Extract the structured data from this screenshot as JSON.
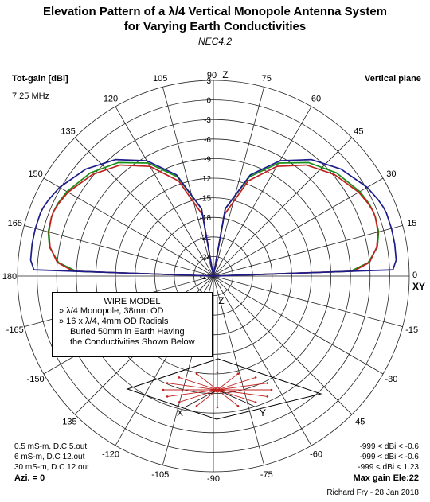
{
  "title_line1": "Elevation Pattern of a λ/4 Vertical Monopole Antenna System",
  "title_line2": "for Varying Earth Conductivities",
  "subtitle": "NEC4.2",
  "top_left_label": "Tot-gain [dBi]",
  "frequency": "7.25 MHz",
  "top_right_label": "Vertical plane",
  "azimuth": "Azi. = 0",
  "max_gain": "Max gain Ele:22",
  "credit": "Richard Fry - 28 Jan 2018",
  "axis_labels": {
    "z_top": "Z",
    "xy": "XY",
    "z_model": "Z",
    "x_model": "X",
    "y_model": "Y"
  },
  "wire_model": {
    "title": "WIRE MODEL",
    "lines": [
      "» λ/4 Monopole, 38mm OD",
      "» 16 x λ/4, 4mm OD Radials",
      "Buried 50mm in Earth Having",
      "the Conductivities Shown Below"
    ]
  },
  "legend_left": [
    {
      "text": "0.5 mS-m, D.C 5.out",
      "color": "#1a8f1a"
    },
    {
      "text": "6 mS-m, D.C 12.out",
      "color": "#c0201e"
    },
    {
      "text": "30 mS-m, D.C 12.out",
      "color": "#1c1c8c"
    }
  ],
  "legend_right": [
    {
      "text": "-999 < dBi < -0.6",
      "color": "#1a8f1a"
    },
    {
      "text": "-999 < dBi < -0.6",
      "color": "#c0201e"
    },
    {
      "text": "-999 < dBi < 1.23",
      "color": "#1c1c8c"
    }
  ],
  "chart_data": {
    "type": "polar",
    "title": "Elevation Pattern of a λ/4 Vertical Monopole Antenna System for Varying Earth Conductivities",
    "radial_ticks": [
      "3",
      "0",
      "-3",
      "-6",
      "-9",
      "-12",
      "-15",
      "-18",
      "-21",
      "-24",
      "-27"
    ],
    "radial_range": [
      -27,
      3
    ],
    "angle_ticks": [
      "90",
      "75",
      "60",
      "45",
      "30",
      "15",
      "0",
      "-15",
      "-30",
      "-45",
      "-60",
      "-75",
      "-90",
      "-105",
      "-120",
      "-135",
      "-150",
      "-165",
      "180",
      "165",
      "150",
      "135",
      "120",
      "105"
    ],
    "grid": true,
    "series": [
      {
        "name": "0.5 mS-m, D.C 5.out",
        "color": "#1a8f1a",
        "elevation_deg": [
          0,
          2,
          5,
          10,
          15,
          20,
          22,
          25,
          30,
          40,
          50,
          60,
          70,
          80,
          90
        ],
        "gain_dbi": [
          -27,
          -6.0,
          -3.2,
          -1.5,
          -0.8,
          -0.6,
          -0.6,
          -0.7,
          -1.1,
          -2.4,
          -4.3,
          -7.0,
          -10.8,
          -16.5,
          -27
        ]
      },
      {
        "name": "6 mS-m, D.C 12.out",
        "color": "#c0201e",
        "elevation_deg": [
          0,
          2,
          5,
          10,
          15,
          20,
          22,
          25,
          30,
          40,
          50,
          60,
          70,
          80,
          90
        ],
        "gain_dbi": [
          -27,
          -5.5,
          -3.0,
          -1.6,
          -0.9,
          -0.6,
          -0.6,
          -0.8,
          -1.3,
          -2.8,
          -4.8,
          -7.6,
          -11.5,
          -17.5,
          -27
        ]
      },
      {
        "name": "30 mS-m, D.C 12.out",
        "color": "#1c1c8c",
        "elevation_deg": [
          0,
          2,
          5,
          10,
          15,
          20,
          22,
          25,
          30,
          40,
          50,
          60,
          70,
          80,
          90
        ],
        "gain_dbi": [
          -27,
          0.5,
          1.1,
          1.2,
          1.23,
          1.2,
          1.1,
          0.8,
          0.2,
          -1.5,
          -3.7,
          -6.6,
          -10.5,
          -16.5,
          -27
        ]
      }
    ]
  }
}
